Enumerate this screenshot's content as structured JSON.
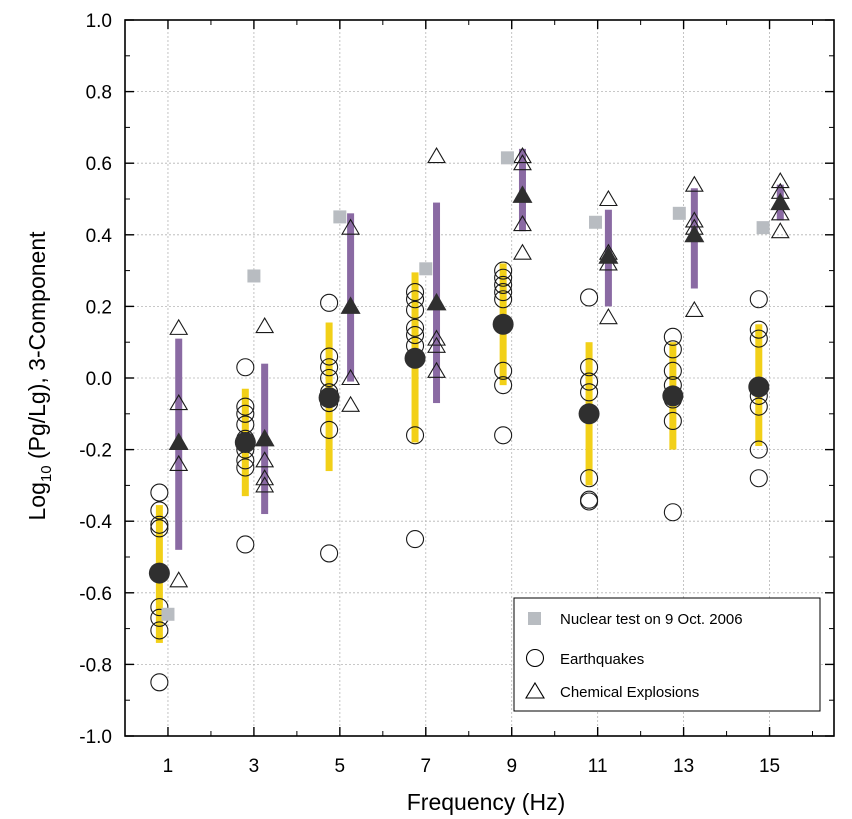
{
  "chart_data": {
    "type": "scatter",
    "xlabel": "Frequency (Hz)",
    "ylabel_prefix": "Log",
    "ylabel_sub": "10",
    "ylabel_middle": " (Pg/Lg), 3-Component",
    "ylim": [
      -1.0,
      1.0
    ],
    "xlim": [
      0,
      16.5
    ],
    "x_ticks": [
      1,
      3,
      5,
      7,
      9,
      11,
      13,
      15
    ],
    "y_ticks": [
      -1.0,
      -0.8,
      -0.6,
      -0.4,
      -0.2,
      0.0,
      0.2,
      0.4,
      0.6,
      0.8,
      1.0
    ],
    "y_tick_labels": [
      "-1.0",
      "-0.8",
      "-0.6",
      "-0.4",
      "-0.2",
      "0.0",
      "0.2",
      "0.4",
      "0.6",
      "0.8",
      "1.0"
    ],
    "grid": true,
    "legend_position": "bottom-right",
    "series": [
      {
        "name": "Nuclear test on 9 Oct. 2006",
        "marker": "square",
        "color": "#b8bcc1",
        "points": [
          [
            1.0,
            -0.66
          ],
          [
            3.0,
            0.285
          ],
          [
            5.0,
            0.45
          ],
          [
            7.0,
            0.305
          ],
          [
            8.9,
            0.615
          ],
          [
            10.95,
            0.435
          ],
          [
            12.9,
            0.46
          ],
          [
            14.85,
            0.42
          ]
        ]
      },
      {
        "name": "Earthquakes",
        "marker": "circle",
        "points": [
          [
            0.8,
            -0.32
          ],
          [
            0.8,
            -0.37
          ],
          [
            0.8,
            -0.41
          ],
          [
            0.8,
            -0.42
          ],
          [
            0.8,
            -0.64
          ],
          [
            0.8,
            -0.67
          ],
          [
            0.8,
            -0.705
          ],
          [
            0.8,
            -0.85
          ],
          [
            2.8,
            0.03
          ],
          [
            2.8,
            -0.08
          ],
          [
            2.8,
            -0.1
          ],
          [
            2.8,
            -0.13
          ],
          [
            2.8,
            -0.17
          ],
          [
            2.8,
            -0.2
          ],
          [
            2.8,
            -0.23
          ],
          [
            2.8,
            -0.25
          ],
          [
            2.8,
            -0.465
          ],
          [
            4.75,
            0.21
          ],
          [
            4.75,
            0.06
          ],
          [
            4.75,
            0.03
          ],
          [
            4.75,
            0.0
          ],
          [
            4.75,
            -0.04
          ],
          [
            4.75,
            -0.07
          ],
          [
            4.75,
            -0.145
          ],
          [
            4.75,
            -0.49
          ],
          [
            6.75,
            0.24
          ],
          [
            6.75,
            0.22
          ],
          [
            6.75,
            0.19
          ],
          [
            6.75,
            0.14
          ],
          [
            6.75,
            0.12
          ],
          [
            6.75,
            0.09
          ],
          [
            6.75,
            -0.16
          ],
          [
            6.75,
            -0.45
          ],
          [
            8.8,
            0.3
          ],
          [
            8.8,
            0.28
          ],
          [
            8.8,
            0.26
          ],
          [
            8.8,
            0.24
          ],
          [
            8.8,
            0.22
          ],
          [
            8.8,
            0.02
          ],
          [
            8.8,
            -0.02
          ],
          [
            8.8,
            -0.16
          ],
          [
            10.8,
            0.225
          ],
          [
            10.8,
            0.03
          ],
          [
            10.8,
            -0.01
          ],
          [
            10.8,
            -0.04
          ],
          [
            10.8,
            -0.28
          ],
          [
            10.8,
            -0.34
          ],
          [
            10.8,
            -0.345
          ],
          [
            12.75,
            0.115
          ],
          [
            12.75,
            0.08
          ],
          [
            12.75,
            0.02
          ],
          [
            12.75,
            -0.02
          ],
          [
            12.75,
            -0.06
          ],
          [
            12.75,
            -0.12
          ],
          [
            12.75,
            -0.375
          ],
          [
            14.75,
            0.22
          ],
          [
            14.75,
            0.135
          ],
          [
            14.75,
            0.11
          ],
          [
            14.75,
            -0.05
          ],
          [
            14.75,
            -0.08
          ],
          [
            14.75,
            -0.2
          ],
          [
            14.75,
            -0.28
          ]
        ],
        "means": [
          [
            0.8,
            -0.545
          ],
          [
            2.8,
            -0.18
          ],
          [
            4.75,
            -0.055
          ],
          [
            6.75,
            0.055
          ],
          [
            8.8,
            0.15
          ],
          [
            10.8,
            -0.1
          ],
          [
            12.75,
            -0.05
          ],
          [
            14.75,
            -0.025
          ]
        ],
        "ranges": [
          [
            -0.74,
            -0.355
          ],
          [
            -0.33,
            -0.03
          ],
          [
            -0.26,
            0.155
          ],
          [
            -0.18,
            0.295
          ],
          [
            -0.02,
            0.32
          ],
          [
            -0.3,
            0.1
          ],
          [
            -0.2,
            0.1
          ],
          [
            -0.19,
            0.15
          ]
        ],
        "bar_color": "#f2d018",
        "mean_color": "#2f2f2f"
      },
      {
        "name": "Chemical Explosions",
        "marker": "triangle",
        "points": [
          [
            1.25,
            0.14
          ],
          [
            1.25,
            -0.07
          ],
          [
            1.25,
            -0.24
          ],
          [
            1.25,
            -0.565
          ],
          [
            3.25,
            0.145
          ],
          [
            3.25,
            -0.23
          ],
          [
            3.25,
            -0.28
          ],
          [
            3.25,
            -0.3
          ],
          [
            5.25,
            0.42
          ],
          [
            5.25,
            0.0
          ],
          [
            5.25,
            -0.075
          ],
          [
            7.25,
            0.62
          ],
          [
            7.25,
            0.11
          ],
          [
            7.25,
            0.09
          ],
          [
            7.25,
            0.02
          ],
          [
            9.25,
            0.62
          ],
          [
            9.25,
            0.6
          ],
          [
            9.25,
            0.43
          ],
          [
            9.25,
            0.35
          ],
          [
            11.25,
            0.5
          ],
          [
            11.25,
            0.35
          ],
          [
            11.25,
            0.32
          ],
          [
            11.25,
            0.17
          ],
          [
            13.25,
            0.54
          ],
          [
            13.25,
            0.44
          ],
          [
            13.25,
            0.42
          ],
          [
            13.25,
            0.19
          ],
          [
            15.25,
            0.55
          ],
          [
            15.25,
            0.52
          ],
          [
            15.25,
            0.46
          ],
          [
            15.25,
            0.41
          ]
        ],
        "means": [
          [
            1.25,
            -0.18
          ],
          [
            3.25,
            -0.17
          ],
          [
            5.25,
            0.2
          ],
          [
            7.25,
            0.21
          ],
          [
            9.25,
            0.51
          ],
          [
            11.25,
            0.34
          ],
          [
            13.25,
            0.4
          ],
          [
            15.25,
            0.49
          ]
        ],
        "ranges": [
          [
            -0.48,
            0.11
          ],
          [
            -0.38,
            0.04
          ],
          [
            -0.01,
            0.46
          ],
          [
            -0.07,
            0.49
          ],
          [
            0.41,
            0.64
          ],
          [
            0.2,
            0.47
          ],
          [
            0.25,
            0.53
          ],
          [
            0.44,
            0.54
          ]
        ],
        "bar_color": "#8a6aa3",
        "mean_color": "#2f2f2f"
      }
    ]
  }
}
